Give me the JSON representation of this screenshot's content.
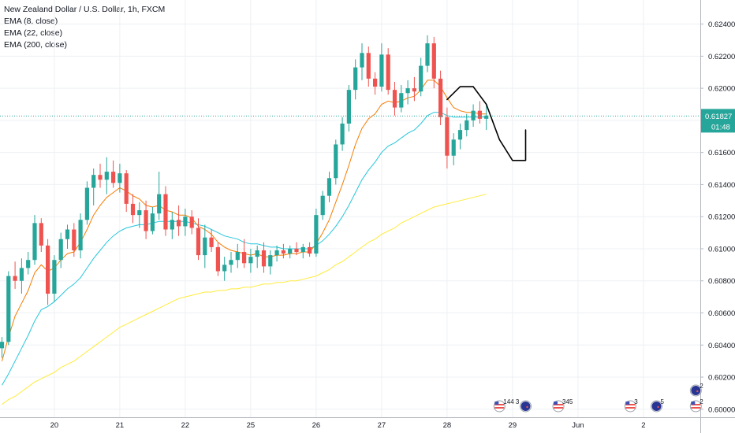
{
  "legend": {
    "title": "New Zealand Dollar / U.S. Dollar, 1h, FXCM",
    "ema8": "EMA (8, close)",
    "ema22": "EMA (22, close)",
    "ema200": "EMA (200, close)"
  },
  "colors": {
    "up": "#26a69a",
    "down": "#ef5350",
    "ema8": "#f57c00",
    "ema22": "#26c6da",
    "ema200": "#ffeb3b",
    "price_tag": "#26a69a",
    "grid": "#eef0f3",
    "drawing": "#000000"
  },
  "chart_data": {
    "type": "candlestick",
    "title": "",
    "xlabel": "",
    "ylabel": "",
    "ylim": [
      0.5995,
      0.6255
    ],
    "grid": true,
    "y_ticks": [
      "0.62400",
      "0.62200",
      "0.62000",
      "0.61800",
      "0.61600",
      "0.61400",
      "0.61200",
      "0.61000",
      "0.60800",
      "0.60600",
      "0.60400",
      "0.60200",
      "0.60000"
    ],
    "y_tick_values": [
      0.624,
      0.622,
      0.62,
      0.618,
      0.616,
      0.614,
      0.612,
      0.61,
      0.608,
      0.606,
      0.604,
      0.602,
      0.6
    ],
    "x_ticks": [
      "20",
      "21",
      "22",
      "25",
      "26",
      "27",
      "28",
      "29",
      "Jun",
      "2"
    ],
    "x_tick_index": [
      8,
      18,
      28,
      38,
      48,
      58,
      68,
      78,
      88,
      98
    ],
    "candles": [
      [
        0.6038,
        0.6045,
        0.6032,
        0.6042
      ],
      [
        0.6042,
        0.6086,
        0.604,
        0.6083
      ],
      [
        0.6083,
        0.6092,
        0.6075,
        0.608
      ],
      [
        0.608,
        0.6094,
        0.6072,
        0.6088
      ],
      [
        0.6088,
        0.6098,
        0.6084,
        0.6093
      ],
      [
        0.6093,
        0.6121,
        0.609,
        0.6116
      ],
      [
        0.6116,
        0.6119,
        0.6098,
        0.6102
      ],
      [
        0.6102,
        0.6106,
        0.6065,
        0.6072
      ],
      [
        0.6072,
        0.6096,
        0.6067,
        0.6093
      ],
      [
        0.6093,
        0.611,
        0.6088,
        0.6106
      ],
      [
        0.6106,
        0.6115,
        0.61,
        0.6112
      ],
      [
        0.6112,
        0.6116,
        0.6095,
        0.6099
      ],
      [
        0.6099,
        0.6122,
        0.6094,
        0.6118
      ],
      [
        0.6118,
        0.6142,
        0.6115,
        0.6138
      ],
      [
        0.6138,
        0.615,
        0.6127,
        0.6146
      ],
      [
        0.6146,
        0.6153,
        0.6138,
        0.6143
      ],
      [
        0.6143,
        0.6157,
        0.6134,
        0.6148
      ],
      [
        0.6148,
        0.6155,
        0.6138,
        0.6141
      ],
      [
        0.6141,
        0.6153,
        0.6135,
        0.6147
      ],
      [
        0.6147,
        0.6149,
        0.6123,
        0.6128
      ],
      [
        0.6128,
        0.6134,
        0.6116,
        0.6121
      ],
      [
        0.6121,
        0.6129,
        0.6113,
        0.6124
      ],
      [
        0.6124,
        0.613,
        0.6106,
        0.6111
      ],
      [
        0.6111,
        0.6126,
        0.6109,
        0.6122
      ],
      [
        0.6122,
        0.6148,
        0.6118,
        0.6134
      ],
      [
        0.6134,
        0.6139,
        0.6108,
        0.6112
      ],
      [
        0.6112,
        0.6123,
        0.6106,
        0.6118
      ],
      [
        0.6118,
        0.6127,
        0.6108,
        0.6114
      ],
      [
        0.6114,
        0.6125,
        0.6108,
        0.612
      ],
      [
        0.612,
        0.6124,
        0.6109,
        0.6113
      ],
      [
        0.6113,
        0.6119,
        0.6093,
        0.6096
      ],
      [
        0.6096,
        0.6115,
        0.6088,
        0.6107
      ],
      [
        0.6107,
        0.6112,
        0.6098,
        0.6101
      ],
      [
        0.6101,
        0.6104,
        0.6083,
        0.6086
      ],
      [
        0.6086,
        0.6095,
        0.608,
        0.609
      ],
      [
        0.609,
        0.6098,
        0.6085,
        0.6093
      ],
      [
        0.6093,
        0.6103,
        0.6088,
        0.6098
      ],
      [
        0.6098,
        0.6106,
        0.6088,
        0.6091
      ],
      [
        0.6091,
        0.61,
        0.6085,
        0.6095
      ],
      [
        0.6095,
        0.6102,
        0.6088,
        0.6099
      ],
      [
        0.6099,
        0.6104,
        0.6085,
        0.6089
      ],
      [
        0.6089,
        0.6099,
        0.6084,
        0.6096
      ],
      [
        0.6096,
        0.6102,
        0.6092,
        0.6099
      ],
      [
        0.6099,
        0.6103,
        0.6094,
        0.6097
      ],
      [
        0.6097,
        0.6102,
        0.6094,
        0.61
      ],
      [
        0.61,
        0.6104,
        0.6096,
        0.6098
      ],
      [
        0.6098,
        0.6103,
        0.6094,
        0.6101
      ],
      [
        0.6101,
        0.6104,
        0.6095,
        0.6097
      ],
      [
        0.6097,
        0.6125,
        0.6095,
        0.6121
      ],
      [
        0.6121,
        0.6136,
        0.6118,
        0.6133
      ],
      [
        0.6133,
        0.6148,
        0.6129,
        0.6144
      ],
      [
        0.6144,
        0.6168,
        0.614,
        0.6165
      ],
      [
        0.6165,
        0.6182,
        0.6161,
        0.6178
      ],
      [
        0.6178,
        0.6202,
        0.6173,
        0.6199
      ],
      [
        0.6199,
        0.6218,
        0.6193,
        0.6213
      ],
      [
        0.6213,
        0.6228,
        0.6205,
        0.6222
      ],
      [
        0.6222,
        0.6226,
        0.6201,
        0.6206
      ],
      [
        0.6206,
        0.621,
        0.6196,
        0.6201
      ],
      [
        0.6201,
        0.6228,
        0.6198,
        0.6221
      ],
      [
        0.6221,
        0.6225,
        0.6196,
        0.6199
      ],
      [
        0.6199,
        0.6204,
        0.6183,
        0.6188
      ],
      [
        0.6188,
        0.6202,
        0.6185,
        0.6197
      ],
      [
        0.6197,
        0.6205,
        0.619,
        0.62
      ],
      [
        0.62,
        0.6207,
        0.6192,
        0.6198
      ],
      [
        0.6198,
        0.6219,
        0.6195,
        0.6214
      ],
      [
        0.6214,
        0.6233,
        0.621,
        0.6228
      ],
      [
        0.6228,
        0.6232,
        0.62,
        0.6206
      ],
      [
        0.6206,
        0.6211,
        0.6177,
        0.6182
      ],
      [
        0.6182,
        0.6188,
        0.615,
        0.6158
      ],
      [
        0.6158,
        0.6172,
        0.6152,
        0.6168
      ],
      [
        0.6168,
        0.6178,
        0.6162,
        0.6174
      ],
      [
        0.6174,
        0.6184,
        0.617,
        0.618
      ],
      [
        0.618,
        0.619,
        0.6176,
        0.6186
      ],
      [
        0.6186,
        0.6192,
        0.6178,
        0.6181
      ],
      [
        0.6181,
        0.619,
        0.6174,
        0.6183
      ]
    ],
    "ema8": [
      0.603,
      0.6045,
      0.6058,
      0.6066,
      0.6074,
      0.6085,
      0.609,
      0.6086,
      0.6088,
      0.6093,
      0.6097,
      0.6098,
      0.6104,
      0.6112,
      0.6121,
      0.6127,
      0.6132,
      0.6135,
      0.6138,
      0.6136,
      0.6133,
      0.6131,
      0.6127,
      0.6126,
      0.6127,
      0.6124,
      0.6123,
      0.6121,
      0.6121,
      0.6119,
      0.6114,
      0.6112,
      0.6109,
      0.6104,
      0.6101,
      0.6099,
      0.6098,
      0.6097,
      0.6096,
      0.6097,
      0.6095,
      0.6095,
      0.6096,
      0.6096,
      0.6097,
      0.6097,
      0.6098,
      0.6098,
      0.6103,
      0.611,
      0.6118,
      0.6129,
      0.614,
      0.6152,
      0.6165,
      0.6175,
      0.6181,
      0.6184,
      0.619,
      0.6192,
      0.6191,
      0.6192,
      0.6194,
      0.6195,
      0.6199,
      0.6205,
      0.6205,
      0.6201,
      0.6194,
      0.6188,
      0.6186,
      0.6185,
      0.6185,
      0.6184,
      0.6184
    ],
    "ema22": [
      0.6015,
      0.6022,
      0.603,
      0.6038,
      0.6046,
      0.6055,
      0.6062,
      0.6064,
      0.6067,
      0.6071,
      0.6075,
      0.6078,
      0.6082,
      0.6088,
      0.6094,
      0.6099,
      0.6104,
      0.6108,
      0.6111,
      0.6113,
      0.6114,
      0.6115,
      0.6115,
      0.6116,
      0.6117,
      0.6117,
      0.6117,
      0.6117,
      0.6117,
      0.6116,
      0.6115,
      0.6114,
      0.6112,
      0.611,
      0.6108,
      0.6107,
      0.6106,
      0.6104,
      0.6103,
      0.6103,
      0.6102,
      0.6101,
      0.6101,
      0.61,
      0.61,
      0.61,
      0.61,
      0.61,
      0.6102,
      0.6105,
      0.6109,
      0.6114,
      0.612,
      0.6127,
      0.6135,
      0.6143,
      0.6149,
      0.6154,
      0.616,
      0.6164,
      0.6166,
      0.6169,
      0.6172,
      0.6174,
      0.6178,
      0.6183,
      0.6185,
      0.6185,
      0.6183,
      0.6182,
      0.6182,
      0.6182,
      0.6182,
      0.6182,
      0.6182
    ],
    "ema200": [
      0.6003,
      0.6006,
      0.6008,
      0.6011,
      0.6014,
      0.6017,
      0.6019,
      0.6021,
      0.6023,
      0.6026,
      0.6028,
      0.603,
      0.6033,
      0.6036,
      0.6039,
      0.6042,
      0.6045,
      0.6048,
      0.6051,
      0.6053,
      0.6055,
      0.6057,
      0.6059,
      0.6061,
      0.6063,
      0.6065,
      0.6067,
      0.6069,
      0.607,
      0.6071,
      0.6072,
      0.6073,
      0.6073,
      0.6074,
      0.6074,
      0.6075,
      0.6075,
      0.6076,
      0.6076,
      0.6077,
      0.6078,
      0.6078,
      0.6079,
      0.6079,
      0.608,
      0.608,
      0.6081,
      0.6082,
      0.6083,
      0.6085,
      0.6087,
      0.609,
      0.6092,
      0.6095,
      0.6098,
      0.6101,
      0.6104,
      0.6106,
      0.6109,
      0.6111,
      0.6113,
      0.6116,
      0.6118,
      0.612,
      0.6122,
      0.6124,
      0.6126,
      0.6127,
      0.6128,
      0.6129,
      0.613,
      0.6131,
      0.6132,
      0.6133,
      0.6134
    ],
    "last_price": 0.61827,
    "last_price_label": "0.61827",
    "countdown": "01:48",
    "drawing": [
      [
        68,
        0.6193
      ],
      [
        70,
        0.6201
      ],
      [
        72,
        0.6201
      ],
      [
        74,
        0.619
      ],
      [
        76,
        0.6168
      ],
      [
        78,
        0.6155
      ],
      [
        79,
        0.6155
      ],
      [
        80,
        0.6155
      ],
      [
        80,
        0.6174
      ]
    ],
    "events": [
      {
        "flag": "us",
        "text": "144 3",
        "index": 76
      },
      {
        "flag": "nz",
        "text": "",
        "index": 80
      },
      {
        "flag": "us",
        "text": "345",
        "index": 85
      },
      {
        "flag": "us",
        "text": "3",
        "index": 96
      },
      {
        "flag": "nz",
        "text": "5",
        "index": 100
      },
      {
        "flag": "us",
        "text": "2",
        "index": 106
      },
      {
        "flag": "nz",
        "text": "2",
        "index": 106
      }
    ]
  }
}
